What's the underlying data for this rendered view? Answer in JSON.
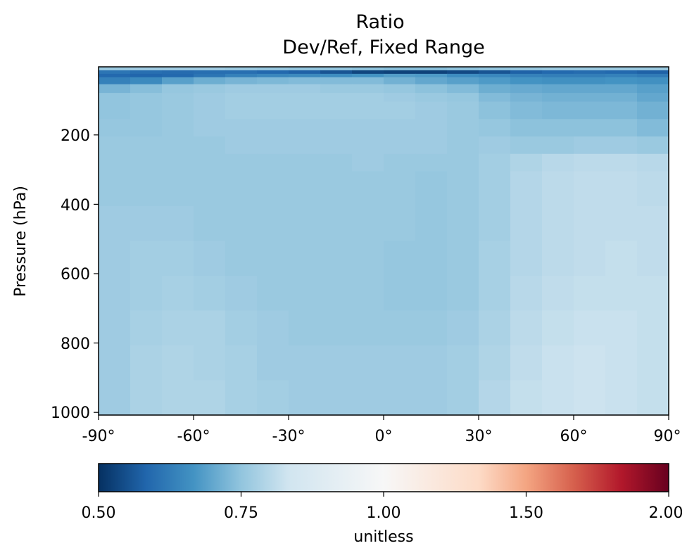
{
  "chart_data": {
    "type": "heatmap",
    "title": "Ratio",
    "subtitle": "Dev/Ref, Fixed Range",
    "ylabel": "Pressure (hPa)",
    "xlabel": "",
    "x_ticks": [
      -90,
      -60,
      -30,
      0,
      30,
      60,
      90
    ],
    "x_tick_labels": [
      "-90°",
      "-60°",
      "-30°",
      "0°",
      "30°",
      "60°",
      "90°"
    ],
    "y_ticks": [
      200,
      400,
      600,
      800,
      1000
    ],
    "y_tick_labels": [
      "200",
      "400",
      "600",
      "800",
      "1000"
    ],
    "xlim": [
      -90,
      90
    ],
    "ylim": [
      1000,
      0
    ],
    "lat_edges": [
      -90,
      -80,
      -70,
      -60,
      -50,
      -40,
      -30,
      -20,
      -10,
      0,
      10,
      20,
      30,
      40,
      50,
      60,
      70,
      80,
      90
    ],
    "pressure_edges": [
      0,
      10,
      20,
      30,
      50,
      75,
      100,
      150,
      200,
      250,
      300,
      400,
      500,
      600,
      700,
      800,
      900,
      1000
    ],
    "values": [
      [
        0.97,
        0.98,
        0.98,
        0.98,
        0.97,
        0.96,
        0.95,
        0.95,
        0.94,
        0.93,
        0.93,
        0.94,
        0.95,
        0.96,
        0.97,
        0.97,
        0.97,
        0.97
      ],
      [
        0.7,
        0.68,
        0.67,
        0.68,
        0.68,
        0.66,
        0.64,
        0.6,
        0.56,
        0.55,
        0.55,
        0.57,
        0.6,
        0.64,
        0.66,
        0.67,
        0.66,
        0.64
      ],
      [
        0.66,
        0.65,
        0.66,
        0.7,
        0.74,
        0.76,
        0.77,
        0.78,
        0.8,
        0.83,
        0.82,
        0.78,
        0.76,
        0.74,
        0.73,
        0.73,
        0.74,
        0.72
      ],
      [
        0.74,
        0.77,
        0.84,
        0.88,
        0.9,
        0.91,
        0.92,
        0.92,
        0.92,
        0.89,
        0.86,
        0.84,
        0.82,
        0.8,
        0.79,
        0.79,
        0.8,
        0.79
      ],
      [
        0.9,
        0.93,
        0.96,
        0.97,
        0.98,
        0.98,
        0.98,
        0.97,
        0.97,
        0.96,
        0.94,
        0.92,
        0.88,
        0.87,
        0.86,
        0.86,
        0.86,
        0.84
      ],
      [
        0.95,
        0.96,
        0.97,
        0.98,
        0.99,
        0.99,
        0.99,
        0.99,
        0.99,
        0.98,
        0.97,
        0.96,
        0.92,
        0.9,
        0.89,
        0.89,
        0.89,
        0.86
      ],
      [
        0.95,
        0.96,
        0.97,
        0.98,
        0.99,
        0.99,
        0.99,
        0.99,
        0.99,
        0.99,
        0.98,
        0.97,
        0.94,
        0.92,
        0.91,
        0.91,
        0.91,
        0.89
      ],
      [
        0.96,
        0.96,
        0.97,
        0.98,
        0.98,
        0.98,
        0.98,
        0.98,
        0.98,
        0.98,
        0.98,
        0.97,
        0.96,
        0.94,
        0.94,
        0.94,
        0.94,
        0.92
      ],
      [
        0.97,
        0.97,
        0.97,
        0.97,
        0.98,
        0.98,
        0.98,
        0.98,
        0.98,
        0.98,
        0.98,
        0.97,
        0.98,
        0.97,
        0.97,
        0.98,
        0.98,
        0.97
      ],
      [
        0.97,
        0.97,
        0.97,
        0.97,
        0.97,
        0.97,
        0.97,
        0.97,
        0.98,
        0.97,
        0.97,
        0.97,
        0.99,
        1.02,
        1.04,
        1.05,
        1.05,
        1.04
      ],
      [
        0.97,
        0.97,
        0.97,
        0.97,
        0.97,
        0.97,
        0.97,
        0.97,
        0.97,
        0.97,
        0.96,
        0.97,
        0.99,
        1.03,
        1.05,
        1.06,
        1.06,
        1.05
      ],
      [
        0.98,
        0.98,
        0.98,
        0.97,
        0.97,
        0.97,
        0.97,
        0.97,
        0.97,
        0.97,
        0.96,
        0.97,
        0.99,
        1.03,
        1.05,
        1.06,
        1.06,
        1.06
      ],
      [
        0.98,
        0.99,
        0.99,
        0.98,
        0.97,
        0.97,
        0.97,
        0.97,
        0.97,
        0.96,
        0.96,
        0.97,
        1.0,
        1.03,
        1.05,
        1.06,
        1.07,
        1.06
      ],
      [
        0.98,
        0.99,
        1.0,
        0.99,
        0.98,
        0.97,
        0.97,
        0.97,
        0.97,
        0.96,
        0.96,
        0.97,
        1.0,
        1.04,
        1.06,
        1.07,
        1.07,
        1.07
      ],
      [
        0.98,
        1.0,
        1.01,
        1.01,
        0.99,
        0.98,
        0.97,
        0.97,
        0.97,
        0.97,
        0.97,
        0.98,
        1.01,
        1.05,
        1.07,
        1.08,
        1.08,
        1.07
      ],
      [
        0.98,
        1.01,
        1.02,
        1.01,
        1.0,
        0.98,
        0.98,
        0.98,
        0.98,
        0.98,
        0.98,
        0.99,
        1.02,
        1.06,
        1.08,
        1.09,
        1.08,
        1.07
      ],
      [
        0.98,
        1.01,
        1.02,
        1.02,
        1.0,
        0.99,
        0.98,
        0.98,
        0.98,
        0.98,
        0.98,
        0.99,
        1.03,
        1.07,
        1.08,
        1.09,
        1.08,
        1.07
      ]
    ],
    "colorbar": {
      "colormap": "RdBu_r",
      "vmin": 0.5,
      "vmax": 2.0,
      "center": 1.0,
      "ticks": [
        0.5,
        0.75,
        1.0,
        1.5,
        2.0
      ],
      "tick_labels": [
        "0.50",
        "0.75",
        "1.00",
        "1.50",
        "2.00"
      ],
      "label": "unitless",
      "orientation": "horizontal"
    },
    "grid": false
  },
  "colors": {
    "colormap_stops": [
      "#053061",
      "#2166ac",
      "#4393c3",
      "#92c5de",
      "#d1e5f0",
      "#f7f7f7",
      "#fddbc7",
      "#f4a582",
      "#d6604d",
      "#b2182b",
      "#67001f"
    ]
  }
}
